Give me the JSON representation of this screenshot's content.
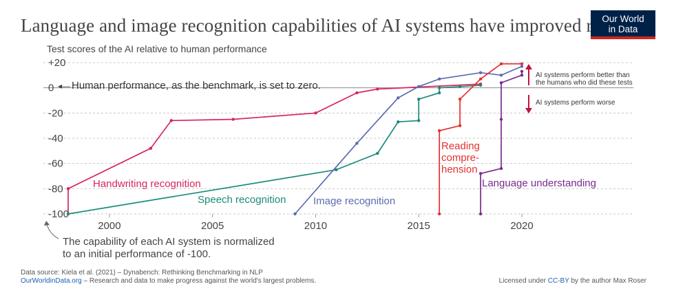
{
  "header": {
    "title": "Language and image recognition capabilities of AI systems have improved rapidly",
    "logo_line1": "Our World",
    "logo_line2": "in Data"
  },
  "chart_data": {
    "type": "line",
    "ylabel": "Test scores of the AI relative to human performance",
    "xlim": [
      1998,
      2020
    ],
    "ylim": [
      -100,
      20
    ],
    "x_ticks": [
      "2000",
      "2005",
      "2010",
      "2015",
      "2020"
    ],
    "y_ticks": [
      "+20",
      "0",
      "-20",
      "-40",
      "-60",
      "-80",
      "-100"
    ],
    "series": [
      {
        "name": "Handwriting recognition",
        "label": "Handwriting recognition",
        "color": "#d6255a",
        "points": [
          [
            1998,
            -100
          ],
          [
            1998,
            -80
          ],
          [
            2002,
            -48
          ],
          [
            2003,
            -26
          ],
          [
            2006,
            -25
          ],
          [
            2010,
            -20
          ],
          [
            2012,
            -4
          ],
          [
            2013,
            -1
          ],
          [
            2018,
            3
          ]
        ]
      },
      {
        "name": "Speech recognition",
        "label": "Speech recognition",
        "color": "#1a8a7a",
        "points": [
          [
            1998,
            -100
          ],
          [
            2011,
            -65
          ],
          [
            2013,
            -52
          ],
          [
            2014,
            -27
          ],
          [
            2015,
            -26
          ],
          [
            2015,
            -9
          ],
          [
            2016,
            -4
          ],
          [
            2016,
            0
          ],
          [
            2017,
            1
          ],
          [
            2018,
            2
          ]
        ]
      },
      {
        "name": "Image recognition",
        "label": "Image recognition",
        "color": "#5b6bb0",
        "points": [
          [
            2009,
            -100
          ],
          [
            2012,
            -44
          ],
          [
            2014,
            -8
          ],
          [
            2015,
            1
          ],
          [
            2016,
            7
          ],
          [
            2018,
            12
          ],
          [
            2019,
            10
          ],
          [
            2020,
            17
          ]
        ]
      },
      {
        "name": "Reading comprehension",
        "label": "Reading compre-hension",
        "label_lines": [
          "Reading",
          "compre-",
          "hension"
        ],
        "color": "#e62f2f",
        "points": [
          [
            2016,
            -100
          ],
          [
            2016,
            -34
          ],
          [
            2017,
            -30
          ],
          [
            2017,
            -9
          ],
          [
            2018,
            7
          ],
          [
            2019,
            19
          ],
          [
            2020,
            19
          ]
        ]
      },
      {
        "name": "Language understanding",
        "label": "Language understanding",
        "color": "#7b2a8e",
        "points": [
          [
            2018,
            -100
          ],
          [
            2018,
            -68
          ],
          [
            2019,
            -64
          ],
          [
            2019,
            -25
          ],
          [
            2019,
            4
          ],
          [
            2020,
            10
          ],
          [
            2020,
            13
          ]
        ]
      }
    ],
    "annotations": {
      "benchmark": "Human performance, as the benchmark, is set to zero.",
      "better_line1": "AI systems perform better than",
      "better_line2": "the humans who did these tests",
      "worse": "AI systems perform worse",
      "normalized_line1": "The capability of each AI system is normalized",
      "normalized_line2": "to an initial performance of -100."
    }
  },
  "footer": {
    "source": "Data source: Kiela et al. (2021) – Dynabench: Rethinking Benchmarking in NLP",
    "site": "OurWorldinData.org",
    "tagline": " – Research and data to make progress against the world's largest problems.",
    "license_prefix": "Licensed under ",
    "license": "CC-BY",
    "license_suffix": " by the author Max Roser"
  },
  "colors": {
    "annotation_arrow": "#c0143c",
    "grid": "#c8c8c8",
    "zero_line": "#888888"
  }
}
